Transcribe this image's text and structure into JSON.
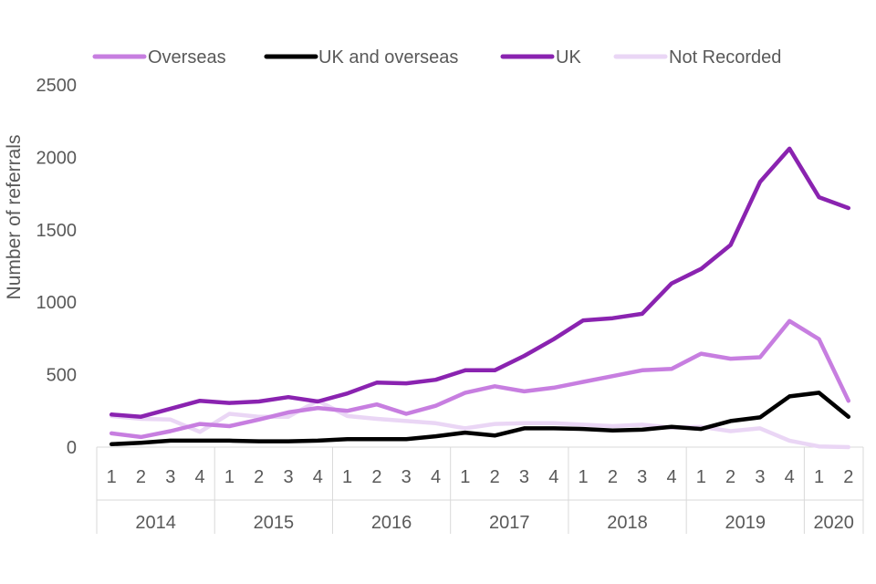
{
  "chart_data": {
    "type": "line",
    "ylabel": "Number of referrals",
    "ylim": [
      0,
      2500
    ],
    "yticks": [
      "0",
      "500",
      "1000",
      "1500",
      "2000",
      "2500"
    ],
    "grid": false,
    "legend_position": "top",
    "quarters": [
      "1",
      "2",
      "3",
      "4",
      "1",
      "2",
      "3",
      "4",
      "1",
      "2",
      "3",
      "4",
      "1",
      "2",
      "3",
      "4",
      "1",
      "2",
      "3",
      "4",
      "1",
      "2",
      "3",
      "4",
      "1",
      "2"
    ],
    "years": [
      {
        "label": "2014",
        "quarters": 4
      },
      {
        "label": "2015",
        "quarters": 4
      },
      {
        "label": "2016",
        "quarters": 4
      },
      {
        "label": "2017",
        "quarters": 4
      },
      {
        "label": "2018",
        "quarters": 4
      },
      {
        "label": "2019",
        "quarters": 4
      },
      {
        "label": "2020",
        "quarters": 2
      }
    ],
    "series": [
      {
        "name": "Overseas",
        "color": "#c77ee0",
        "values": [
          95,
          70,
          110,
          160,
          145,
          190,
          240,
          270,
          250,
          295,
          230,
          285,
          375,
          420,
          385,
          410,
          450,
          490,
          530,
          540,
          645,
          610,
          620,
          870,
          745,
          320
        ]
      },
      {
        "name": "UK and overseas",
        "color": "#000000",
        "values": [
          20,
          30,
          45,
          45,
          45,
          40,
          40,
          45,
          55,
          55,
          55,
          75,
          100,
          80,
          130,
          130,
          125,
          115,
          120,
          140,
          125,
          180,
          205,
          350,
          375,
          210
        ]
      },
      {
        "name": "UK",
        "color": "#8a23b0",
        "values": [
          225,
          210,
          265,
          320,
          305,
          315,
          345,
          315,
          370,
          445,
          440,
          465,
          530,
          530,
          630,
          745,
          875,
          890,
          920,
          1130,
          1230,
          1395,
          1830,
          2060,
          1725,
          1650
        ]
      },
      {
        "name": "Not Recorded",
        "color": "#ead6f5",
        "values": [
          215,
          195,
          190,
          105,
          230,
          210,
          210,
          320,
          215,
          195,
          180,
          165,
          130,
          160,
          165,
          165,
          155,
          145,
          155,
          135,
          140,
          110,
          130,
          45,
          5,
          0
        ]
      }
    ]
  }
}
